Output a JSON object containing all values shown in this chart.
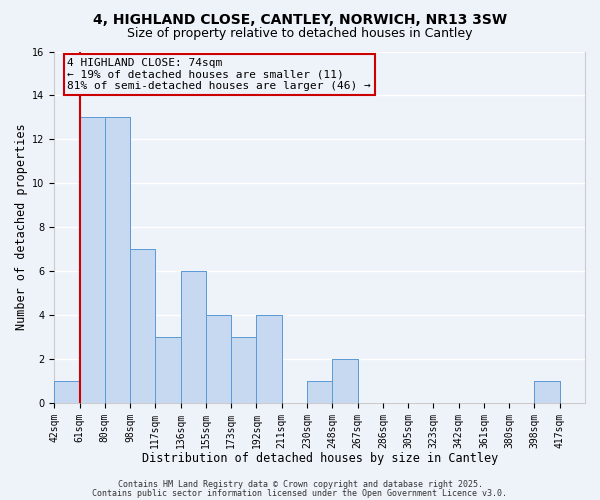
{
  "title": "4, HIGHLAND CLOSE, CANTLEY, NORWICH, NR13 3SW",
  "subtitle": "Size of property relative to detached houses in Cantley",
  "xlabel": "Distribution of detached houses by size in Cantley",
  "ylabel": "Number of detached properties",
  "bar_labels": [
    "42sqm",
    "61sqm",
    "80sqm",
    "98sqm",
    "117sqm",
    "136sqm",
    "155sqm",
    "173sqm",
    "192sqm",
    "211sqm",
    "230sqm",
    "248sqm",
    "267sqm",
    "286sqm",
    "305sqm",
    "323sqm",
    "342sqm",
    "361sqm",
    "380sqm",
    "398sqm",
    "417sqm"
  ],
  "bar_values": [
    1,
    13,
    13,
    7,
    3,
    6,
    4,
    3,
    4,
    0,
    1,
    2,
    0,
    0,
    0,
    0,
    0,
    0,
    0,
    1,
    0
  ],
  "bar_color": "#c6d9f0",
  "bar_edge_color": "#5b9bd5",
  "background_color": "#eef2f9",
  "grid_color": "#ffffff",
  "property_line_x": 1,
  "annotation_title": "4 HIGHLAND CLOSE: 74sqm",
  "annotation_line1": "← 19% of detached houses are smaller (11)",
  "annotation_line2": "81% of semi-detached houses are larger (46) →",
  "red_line_color": "#cc0000",
  "annotation_box_edge": "#cc0000",
  "ylim": [
    0,
    16
  ],
  "yticks": [
    0,
    2,
    4,
    6,
    8,
    10,
    12,
    14,
    16
  ],
  "footer1": "Contains HM Land Registry data © Crown copyright and database right 2025.",
  "footer2": "Contains public sector information licensed under the Open Government Licence v3.0.",
  "title_fontsize": 10,
  "subtitle_fontsize": 9,
  "tick_fontsize": 7,
  "ylabel_fontsize": 8.5,
  "xlabel_fontsize": 8.5,
  "annotation_fontsize": 8,
  "footer_fontsize": 6
}
